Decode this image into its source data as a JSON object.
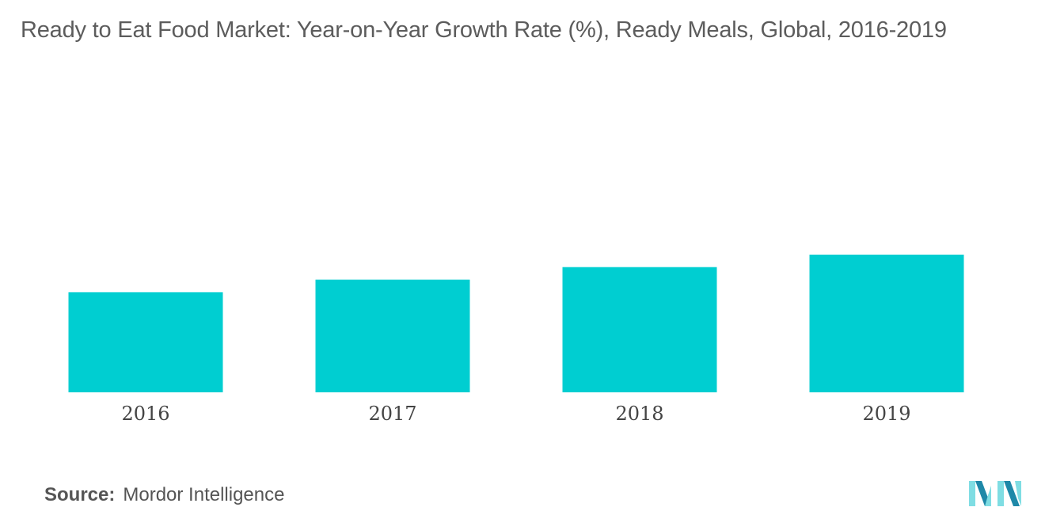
{
  "chart_data": {
    "type": "bar",
    "title": "Ready to Eat Food Market: Year-on-Year Growth Rate (%), Ready Meals, Global, 2016-2019",
    "categories": [
      "2016",
      "2017",
      "2018",
      "2019"
    ],
    "values": [
      3.2,
      3.6,
      4.0,
      4.4
    ],
    "xlabel": "",
    "ylabel": "",
    "ylim": [
      0,
      9.2
    ],
    "grid": false,
    "legend": "none",
    "bar_color": "#00CED1"
  },
  "source": {
    "label": "Source:",
    "value": "Mordor Intelligence"
  },
  "colors": {
    "logo_light": "#7FDDE3",
    "logo_dark": "#1E88A8"
  }
}
